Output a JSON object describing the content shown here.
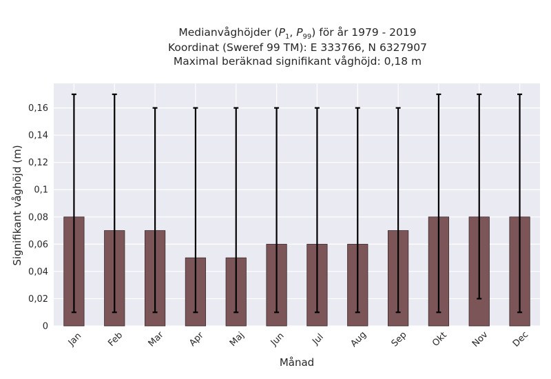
{
  "chart_data": {
    "type": "bar",
    "title_lines": [
      "Medianvåghöjder (P1, P99) för år 1979 - 2019",
      "Koordinat (Sweref 99 TM): E 333766, N 6327907",
      "Maximal beräknad signifikant våghöjd: 0,18 m"
    ],
    "xlabel": "Månad",
    "ylabel": "Signifikant våghöjd (m)",
    "categories": [
      "Jan",
      "Feb",
      "Mar",
      "Apr",
      "Maj",
      "Jun",
      "Jul",
      "Aug",
      "Sep",
      "Okt",
      "Nov",
      "Dec"
    ],
    "values": [
      0.08,
      0.07,
      0.07,
      0.05,
      0.05,
      0.06,
      0.06,
      0.06,
      0.07,
      0.08,
      0.08,
      0.08
    ],
    "p1": [
      0.01,
      0.01,
      0.01,
      0.01,
      0.01,
      0.01,
      0.01,
      0.01,
      0.01,
      0.01,
      0.02,
      0.01
    ],
    "p99": [
      0.17,
      0.17,
      0.16,
      0.16,
      0.16,
      0.16,
      0.16,
      0.16,
      0.16,
      0.17,
      0.17,
      0.17
    ],
    "ylim": [
      0,
      0.178
    ],
    "yticks": [
      0,
      0.02,
      0.04,
      0.06,
      0.08,
      0.1,
      0.12,
      0.14,
      0.16
    ],
    "ytick_labels": [
      "0",
      "0,02",
      "0,04",
      "0,06",
      "0,08",
      "0,1",
      "0,12",
      "0,14",
      "0,16"
    ],
    "grid": true,
    "colors": {
      "background": "#eaeaf2",
      "bar_fill": "#7b5557",
      "bar_edge": "#3a2a2b",
      "error_bar": "#000000",
      "grid": "#ffffff"
    }
  }
}
